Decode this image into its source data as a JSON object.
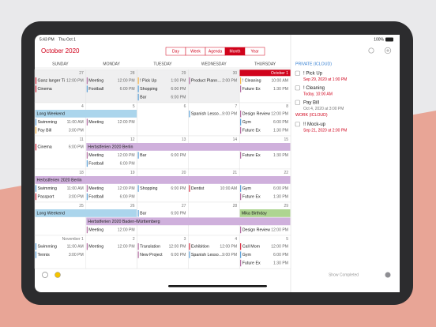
{
  "status_bar": {
    "time": "5:43 PM",
    "date": "Thu Oct 1",
    "battery": "100%"
  },
  "header": {
    "title": "October 2020",
    "views": [
      "Day",
      "Week",
      "Agenda",
      "Month",
      "Year"
    ],
    "selected_view": "Month"
  },
  "weekdays": [
    "SUNDAY",
    "MONDAY",
    "TUESDAY",
    "WEDNESDAY",
    "THURSDAY"
  ],
  "weeks": [
    {
      "banners": [],
      "days": [
        {
          "label": "27",
          "outside_month": true,
          "events": [
            {
              "title": "Ganz langer Ti",
              "time": "12:00 PM",
              "color": "#d0021b"
            },
            {
              "title": "Cinema",
              "color": "#d0021b"
            }
          ]
        },
        {
          "label": "28",
          "outside_month": true,
          "events": [
            {
              "title": "Meeting",
              "time": "12:00 PM",
              "color": "#a4508f"
            },
            {
              "title": "Football",
              "time": "6:00 PM",
              "color": "#3d8fd1"
            }
          ]
        },
        {
          "label": "29",
          "outside_month": true,
          "events": [
            {
              "title": "! Pick Up",
              "time": "1:00 PM",
              "color": "#f5a623"
            },
            {
              "title": "Shopping",
              "time": "6:00 PM",
              "color": "#3d8fd1"
            },
            {
              "title": "Bar",
              "time": "6:00 PM",
              "color": "#3d8fd1"
            }
          ]
        },
        {
          "label": "30",
          "outside_month": true,
          "events": [
            {
              "title": "Product Plann…",
              "time": "2:00 PM",
              "color": "#a4508f"
            }
          ]
        },
        {
          "label": "October 1",
          "today": true,
          "events": [
            {
              "title": "! Cleaning",
              "time": "10:00 AM",
              "color": "#f5a623"
            },
            {
              "title": "Future Ex",
              "time": "1:30 PM",
              "color": "#a4508f"
            }
          ]
        }
      ]
    },
    {
      "banners": [
        {
          "title": "Long Weekend",
          "first": 0,
          "last": 1,
          "color": "#abd5ec"
        }
      ],
      "days": [
        {
          "label": "4",
          "events": [
            {
              "title": "Swimming",
              "time": "11:00 AM",
              "color": "#3d8fd1"
            },
            {
              "title": "Pay Bill",
              "time": "3:00 PM",
              "color": "#f5a623"
            }
          ]
        },
        {
          "label": "5",
          "events": [
            {
              "title": "Meeting",
              "time": "12:00 PM",
              "color": "#a4508f"
            }
          ]
        },
        {
          "label": "6",
          "events": []
        },
        {
          "label": "7",
          "events": [
            {
              "title": "Spanish Lesso…",
              "time": "9:00 PM",
              "color": "#3d8fd1"
            }
          ]
        },
        {
          "label": "8",
          "events": [
            {
              "title": "Design Review",
              "time": "12:00 PM",
              "color": "#a4508f"
            },
            {
              "title": "Gym",
              "time": "6:00 PM",
              "color": "#3d8fd1"
            },
            {
              "title": "Future Ex",
              "time": "1:30 PM",
              "color": "#a4508f"
            }
          ]
        }
      ]
    },
    {
      "banners": [
        {
          "title": "Herbstferien 2020 Berlin",
          "first": 1,
          "last": 4,
          "color": "#cfb0dc"
        }
      ],
      "days": [
        {
          "label": "11",
          "events": [
            {
              "title": "Cinema",
              "time": "6:00 PM",
              "color": "#d0021b"
            }
          ]
        },
        {
          "label": "12",
          "events": [
            {
              "title": "Meeting",
              "time": "12:00 PM",
              "color": "#a4508f"
            },
            {
              "title": "Football",
              "time": "6:00 PM",
              "color": "#3d8fd1"
            }
          ]
        },
        {
          "label": "13",
          "events": [
            {
              "title": "Bar",
              "time": "6:00 PM",
              "color": "#3d8fd1"
            }
          ]
        },
        {
          "label": "14",
          "events": []
        },
        {
          "label": "15",
          "events": [
            {
              "title": "Future Ex",
              "time": "1:30 PM",
              "color": "#a4508f"
            }
          ]
        }
      ]
    },
    {
      "banners": [
        {
          "title": "Herbstferien 2020 Berlin",
          "first": 0,
          "last": 4,
          "color": "#cfb0dc"
        }
      ],
      "days": [
        {
          "label": "18",
          "events": [
            {
              "title": "Swimming",
              "time": "11:00 AM",
              "color": "#3d8fd1"
            },
            {
              "title": "Passport",
              "time": "3:00 PM",
              "color": "#d0021b"
            }
          ]
        },
        {
          "label": "19",
          "events": [
            {
              "title": "Meeting",
              "time": "12:00 PM",
              "color": "#a4508f"
            },
            {
              "title": "Football",
              "time": "6:00 PM",
              "color": "#3d8fd1"
            }
          ]
        },
        {
          "label": "20",
          "events": [
            {
              "title": "Shopping",
              "time": "6:00 PM",
              "color": "#3d8fd1"
            }
          ]
        },
        {
          "label": "21",
          "events": [
            {
              "title": "Dentist",
              "time": "10:00 AM",
              "color": "#d0021b"
            }
          ]
        },
        {
          "label": "22",
          "events": [
            {
              "title": "Gym",
              "time": "6:00 PM",
              "color": "#3d8fd1"
            },
            {
              "title": "Future Ex",
              "time": "1:30 PM",
              "color": "#a4508f"
            }
          ]
        }
      ]
    },
    {
      "banners": [
        {
          "title": "Long Weekend",
          "first": 0,
          "last": 1,
          "color": "#abd5ec"
        },
        {
          "title": "Mika Birthday",
          "first": 4,
          "last": 4,
          "color": "#aed591"
        },
        {
          "title": "Herbstferien 2020 Baden-Württemberg",
          "first": 1,
          "last": 4,
          "color": "#cfb0dc"
        }
      ],
      "days": [
        {
          "label": "25",
          "events": []
        },
        {
          "label": "26",
          "events": [
            {
              "title": "Meeting",
              "time": "12:00 PM",
              "color": "#a4508f"
            }
          ]
        },
        {
          "label": "27",
          "events": [
            {
              "title": "Bar",
              "time": "6:00 PM",
              "color": "#3d8fd1"
            }
          ]
        },
        {
          "label": "28",
          "events": []
        },
        {
          "label": "29",
          "events": [
            {
              "title": "Design Review",
              "time": "12:00 PM",
              "color": "#a4508f"
            }
          ]
        }
      ]
    },
    {
      "banners": [],
      "days": [
        {
          "label": "November 1",
          "events": [
            {
              "title": "Swimming",
              "time": "11:00 AM",
              "color": "#3d8fd1"
            },
            {
              "title": "Tennis",
              "time": "3:00 PM",
              "color": "#3d8fd1"
            }
          ]
        },
        {
          "label": "2",
          "events": [
            {
              "title": "Meeting",
              "time": "12:00 PM",
              "color": "#a4508f"
            }
          ]
        },
        {
          "label": "3",
          "events": [
            {
              "title": "Translation",
              "time": "12:00 PM",
              "color": "#a4508f"
            },
            {
              "title": "New Project",
              "time": "6:00 PM",
              "color": "#a4508f"
            }
          ]
        },
        {
          "label": "4",
          "events": [
            {
              "title": "Exhibition",
              "time": "12:00 PM",
              "color": "#d0021b"
            },
            {
              "title": "Spanish Lesso…",
              "time": "9:00 PM",
              "color": "#3d8fd1"
            }
          ]
        },
        {
          "label": "5",
          "events": [
            {
              "title": "Call Mom",
              "time": "12:00 PM",
              "color": "#d0021b"
            },
            {
              "title": "Gym",
              "time": "6:00 PM",
              "color": "#3d8fd1"
            },
            {
              "title": "Future Ex",
              "time": "1:30 PM",
              "color": "#a4508f"
            }
          ]
        }
      ]
    }
  ],
  "reminders": {
    "lists": [
      {
        "name": "PRIVATE (ICLOUD)",
        "color": "#2f7bd0",
        "items": [
          {
            "title": "! Pick Up",
            "due": "Sep 29, 2020 at 1:00 PM",
            "overdue": true
          },
          {
            "title": "! Cleaning",
            "due": "Today, 10:00 AM",
            "overdue": true
          },
          {
            "title": "Pay Bill",
            "due": "Oct 4, 2020 at 3:00 PM",
            "overdue": false
          }
        ]
      },
      {
        "name": "WORK (ICLOUD)",
        "color": "#d0021b",
        "items": [
          {
            "title": "!! Mock-up",
            "due": "Sep 21, 2020 at 2:00 PM",
            "overdue": true
          }
        ]
      }
    ],
    "footer": "Show Completed"
  }
}
